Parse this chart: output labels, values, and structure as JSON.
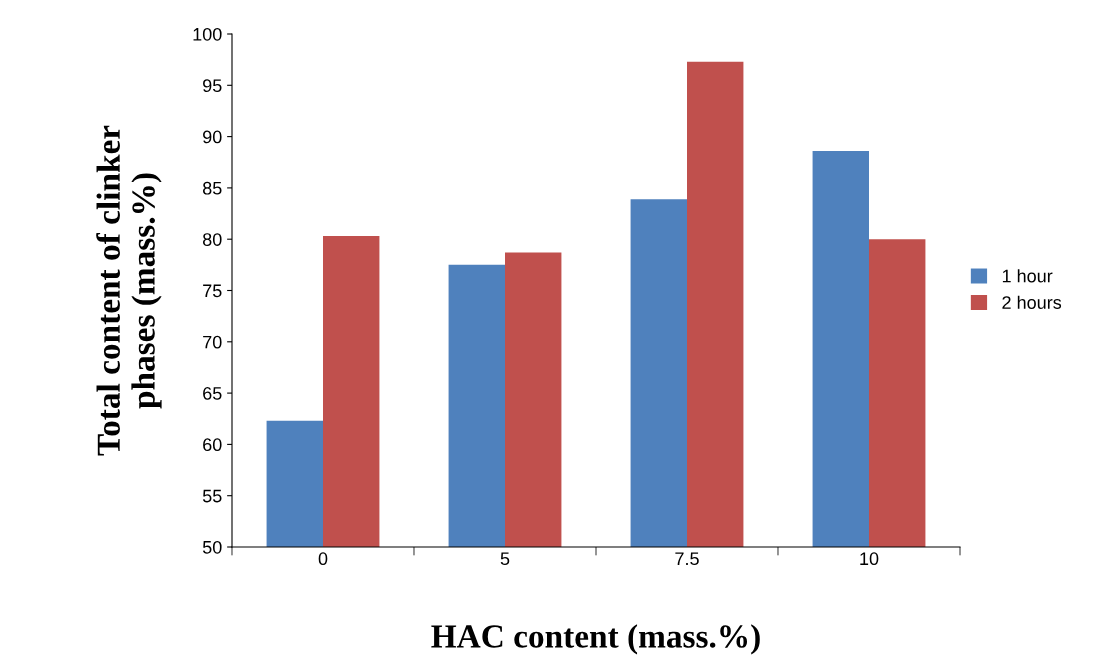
{
  "chart_data": {
    "type": "bar",
    "xlabel": "HAC content (mass.%)",
    "ylabel": "Total content of clinker\nphases (mass.%)",
    "categories": [
      "0",
      "5",
      "7.5",
      "10"
    ],
    "series": [
      {
        "name": "1 hour",
        "color": "#4f81bd",
        "values": [
          62.3,
          77.5,
          83.9,
          88.6
        ]
      },
      {
        "name": "2 hours",
        "color": "#c0504d",
        "values": [
          80.3,
          78.7,
          97.3,
          80.0
        ]
      }
    ],
    "ylim": [
      50,
      100
    ],
    "yticks": [
      50,
      55,
      60,
      65,
      70,
      75,
      80,
      85,
      90,
      95,
      100
    ],
    "grid": false,
    "legend": "right"
  }
}
